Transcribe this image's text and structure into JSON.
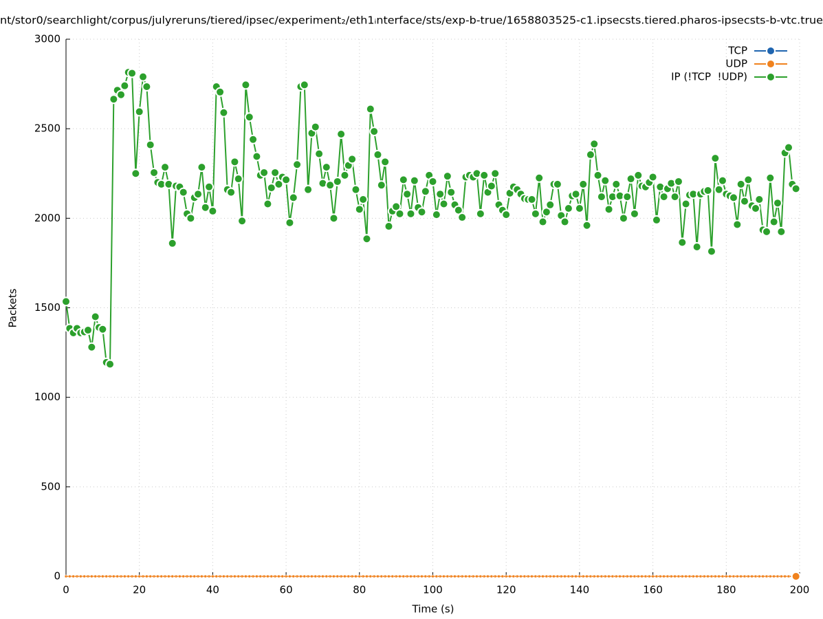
{
  "chart_data": {
    "type": "line",
    "title": "nt/stor0/searchlight/corpus/julyreruns/tiered/ipsec/experiment₂/eth1ᵢnterface/sts/exp-b-true/1658803525-c1.ipsecsts.tiered.pharos-ipsecsts-b-vtc.true",
    "xlabel": "Time (s)",
    "ylabel": "Packets",
    "x": [
      0,
      1,
      2,
      3,
      4,
      5,
      6,
      7,
      8,
      9,
      10,
      11,
      12,
      13,
      14,
      15,
      16,
      17,
      18,
      19,
      20,
      21,
      22,
      23,
      24,
      25,
      26,
      27,
      28,
      29,
      30,
      31,
      32,
      33,
      34,
      35,
      36,
      37,
      38,
      39,
      40,
      41,
      42,
      43,
      44,
      45,
      46,
      47,
      48,
      49,
      50,
      51,
      52,
      53,
      54,
      55,
      56,
      57,
      58,
      59,
      60,
      61,
      62,
      63,
      64,
      65,
      66,
      67,
      68,
      69,
      70,
      71,
      72,
      73,
      74,
      75,
      76,
      77,
      78,
      79,
      80,
      81,
      82,
      83,
      84,
      85,
      86,
      87,
      88,
      89,
      90,
      91,
      92,
      93,
      94,
      95,
      96,
      97,
      98,
      99,
      100,
      101,
      102,
      103,
      104,
      105,
      106,
      107,
      108,
      109,
      110,
      111,
      112,
      113,
      114,
      115,
      116,
      117,
      118,
      119,
      120,
      121,
      122,
      123,
      124,
      125,
      126,
      127,
      128,
      129,
      130,
      131,
      132,
      133,
      134,
      135,
      136,
      137,
      138,
      139,
      140,
      141,
      142,
      143,
      144,
      145,
      146,
      147,
      148,
      149,
      150,
      151,
      152,
      153,
      154,
      155,
      156,
      157,
      158,
      159,
      160,
      161,
      162,
      163,
      164,
      165,
      166,
      167,
      168,
      169,
      170,
      171,
      172,
      173,
      174,
      175,
      176,
      177,
      178,
      179,
      180,
      181,
      182,
      183,
      184,
      185,
      186,
      187,
      188,
      189,
      190,
      191,
      192,
      193,
      194,
      195,
      196,
      197,
      198,
      199
    ],
    "series": [
      {
        "name": "TCP",
        "color": "#1f65b0",
        "values": [
          0,
          0,
          0,
          0,
          0,
          0,
          0,
          0,
          0,
          0,
          0,
          0,
          0,
          0,
          0,
          0,
          0,
          0,
          0,
          0,
          0,
          0,
          0,
          0,
          0,
          0,
          0,
          0,
          0,
          0,
          0,
          0,
          0,
          0,
          0,
          0,
          0,
          0,
          0,
          0,
          0,
          0,
          0,
          0,
          0,
          0,
          0,
          0,
          0,
          0,
          0,
          0,
          0,
          0,
          0,
          0,
          0,
          0,
          0,
          0,
          0,
          0,
          0,
          0,
          0,
          0,
          0,
          0,
          0,
          0,
          0,
          0,
          0,
          0,
          0,
          0,
          0,
          0,
          0,
          0,
          0,
          0,
          0,
          0,
          0,
          0,
          0,
          0,
          0,
          0,
          0,
          0,
          0,
          0,
          0,
          0,
          0,
          0,
          0,
          0,
          0,
          0,
          0,
          0,
          0,
          0,
          0,
          0,
          0,
          0,
          0,
          0,
          0,
          0,
          0,
          0,
          0,
          0,
          0,
          0,
          0,
          0,
          0,
          0,
          0,
          0,
          0,
          0,
          0,
          0,
          0,
          0,
          0,
          0,
          0,
          0,
          0,
          0,
          0,
          0,
          0,
          0,
          0,
          0,
          0,
          0,
          0,
          0,
          0,
          0,
          0,
          0,
          0,
          0,
          0,
          0,
          0,
          0,
          0,
          0,
          0,
          0,
          0,
          0,
          0,
          0,
          0,
          0,
          0,
          0,
          0,
          0,
          0,
          0,
          0,
          0,
          0,
          0,
          0,
          0,
          0,
          0,
          0,
          0,
          0,
          0,
          0,
          0,
          0,
          0,
          0,
          0,
          0,
          0,
          0,
          0,
          0,
          0,
          0,
          0
        ]
      },
      {
        "name": "UDP",
        "color": "#f0821e",
        "values": [
          0,
          0,
          0,
          0,
          0,
          0,
          0,
          0,
          0,
          0,
          0,
          0,
          0,
          0,
          0,
          0,
          0,
          0,
          0,
          0,
          0,
          0,
          0,
          0,
          0,
          0,
          0,
          0,
          0,
          0,
          0,
          0,
          0,
          0,
          0,
          0,
          0,
          0,
          0,
          0,
          0,
          0,
          0,
          0,
          0,
          0,
          0,
          0,
          0,
          0,
          0,
          0,
          0,
          0,
          0,
          0,
          0,
          0,
          0,
          0,
          0,
          0,
          0,
          0,
          0,
          0,
          0,
          0,
          0,
          0,
          0,
          0,
          0,
          0,
          0,
          0,
          0,
          0,
          0,
          0,
          0,
          0,
          0,
          0,
          0,
          0,
          0,
          0,
          0,
          0,
          0,
          0,
          0,
          0,
          0,
          0,
          0,
          0,
          0,
          0,
          0,
          0,
          0,
          0,
          0,
          0,
          0,
          0,
          0,
          0,
          0,
          0,
          0,
          0,
          0,
          0,
          0,
          0,
          0,
          0,
          0,
          0,
          0,
          0,
          0,
          0,
          0,
          0,
          0,
          0,
          0,
          0,
          0,
          0,
          0,
          0,
          0,
          0,
          0,
          0,
          0,
          0,
          0,
          0,
          0,
          0,
          0,
          0,
          0,
          0,
          0,
          0,
          0,
          0,
          0,
          0,
          0,
          0,
          0,
          0,
          0,
          0,
          0,
          0,
          0,
          0,
          0,
          0,
          0,
          0,
          0,
          0,
          0,
          0,
          0,
          0,
          0,
          0,
          0,
          0,
          0,
          0,
          0,
          0,
          0,
          0,
          0,
          0,
          0,
          0,
          0,
          0,
          0,
          0,
          0,
          0,
          0,
          0,
          0,
          0
        ]
      },
      {
        "name": "IP (!TCP  !UDP)",
        "color": "#2ca02c",
        "values": [
          1535,
          1385,
          1360,
          1385,
          1360,
          1365,
          1375,
          1280,
          1450,
          1390,
          1380,
          1195,
          1185,
          2665,
          2715,
          2690,
          2740,
          2815,
          2810,
          2250,
          2595,
          2790,
          2735,
          2410,
          2255,
          2200,
          2190,
          2285,
          2190,
          1860,
          2180,
          2175,
          2145,
          2025,
          2000,
          2115,
          2135,
          2285,
          2060,
          2175,
          2040,
          2735,
          2705,
          2590,
          2160,
          2145,
          2315,
          2220,
          1985,
          2745,
          2565,
          2440,
          2345,
          2240,
          2255,
          2080,
          2170,
          2255,
          2190,
          2230,
          2215,
          1975,
          2115,
          2300,
          2735,
          2745,
          2160,
          2475,
          2510,
          2360,
          2195,
          2285,
          2185,
          2000,
          2205,
          2470,
          2240,
          2295,
          2330,
          2160,
          2050,
          2105,
          1885,
          2610,
          2485,
          2355,
          2185,
          2315,
          1955,
          2040,
          2065,
          2025,
          2215,
          2135,
          2025,
          2210,
          2060,
          2035,
          2150,
          2240,
          2205,
          2020,
          2135,
          2080,
          2235,
          2145,
          2075,
          2045,
          2005,
          2230,
          2240,
          2230,
          2250,
          2025,
          2240,
          2145,
          2180,
          2250,
          2075,
          2045,
          2020,
          2140,
          2175,
          2160,
          2135,
          2110,
          2105,
          2105,
          2025,
          2225,
          1980,
          2035,
          2075,
          2190,
          2190,
          2015,
          1980,
          2055,
          2125,
          2135,
          2055,
          2190,
          1960,
          2355,
          2415,
          2240,
          2120,
          2210,
          2050,
          2120,
          2190,
          2125,
          2000,
          2120,
          2220,
          2025,
          2240,
          2180,
          2175,
          2200,
          2230,
          1990,
          2175,
          2120,
          2165,
          2195,
          2120,
          2205,
          1865,
          2080,
          2130,
          2135,
          1840,
          2135,
          2150,
          2155,
          1815,
          2335,
          2160,
          2210,
          2135,
          2125,
          2115,
          1965,
          2190,
          2095,
          2215,
          2070,
          2055,
          2105,
          1935,
          1925,
          2225,
          1980,
          2085,
          1925,
          2365,
          2395,
          2190,
          2165
        ]
      }
    ],
    "xlim": [
      0,
      200
    ],
    "xticks": [
      0,
      20,
      40,
      60,
      80,
      100,
      120,
      140,
      160,
      180,
      200
    ],
    "ylim": [
      0,
      3000
    ],
    "yticks": [
      0,
      500,
      1000,
      1500,
      2000,
      2500,
      3000
    ],
    "grid": true,
    "legend": "top-right"
  }
}
